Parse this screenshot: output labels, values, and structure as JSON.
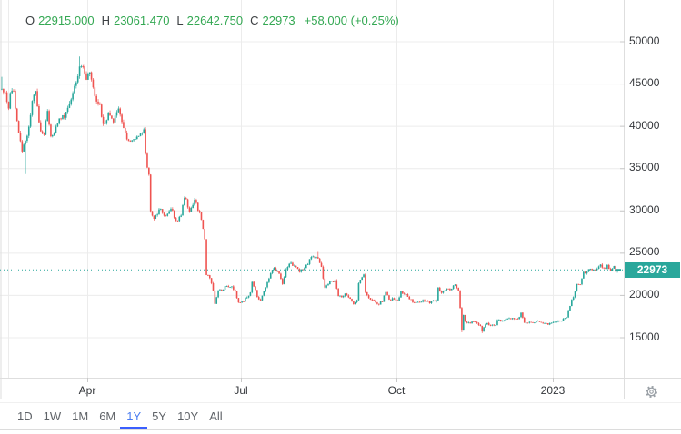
{
  "header": {
    "o_label": "O",
    "o_value": "22915.000",
    "h_label": "H",
    "h_value": "23061.470",
    "l_label": "L",
    "l_value": "22642.750",
    "c_label": "C",
    "c_value": "22973",
    "change": "+58.000 (+0.25%)"
  },
  "toolbar": {
    "ranges": [
      {
        "label": "1D",
        "active": false
      },
      {
        "label": "1W",
        "active": false
      },
      {
        "label": "1M",
        "active": false
      },
      {
        "label": "6M",
        "active": false
      },
      {
        "label": "1Y",
        "active": true
      },
      {
        "label": "5Y",
        "active": false
      },
      {
        "label": "10Y",
        "active": false
      },
      {
        "label": "All",
        "active": false
      }
    ]
  },
  "icons": {
    "settings": "gear"
  },
  "chart_data": {
    "type": "candlestick",
    "title": "1-year daily price chart, last close 22973",
    "legend_position": "top-left",
    "grid": true,
    "seed": 20,
    "candle_count": 365,
    "y_axis": {
      "ticks": [
        50000,
        45000,
        40000,
        35000,
        30000,
        25000,
        20000,
        15000
      ],
      "side": "right"
    },
    "x_axis": {
      "ticks": [
        {
          "label": "Apr",
          "day": 51
        },
        {
          "label": "Jul",
          "day": 142
        },
        {
          "label": "Oct",
          "day": 234
        },
        {
          "label": "2023",
          "day": 326
        }
      ]
    },
    "last_price_label": "22973",
    "forced_last": {
      "i": 364,
      "open": 22915,
      "high": 23061.47,
      "low": 22642.75,
      "close": 22973
    },
    "forced_wicks": [
      {
        "i": 0,
        "high": 45800
      },
      {
        "i": 14,
        "low": 34300
      },
      {
        "i": 46,
        "high": 48200
      },
      {
        "i": 126,
        "low": 17600
      },
      {
        "i": 187,
        "high": 25200
      },
      {
        "i": 272,
        "low": 15600
      },
      {
        "i": 284,
        "low": 15500
      }
    ],
    "anchors": [
      [
        0,
        44200
      ],
      [
        2,
        43900
      ],
      [
        4,
        42100
      ],
      [
        5,
        44100
      ],
      [
        7,
        43900
      ],
      [
        9,
        40300
      ],
      [
        11,
        38400
      ],
      [
        12,
        37100
      ],
      [
        14,
        38400
      ],
      [
        16,
        39600
      ],
      [
        18,
        43200
      ],
      [
        20,
        44400
      ],
      [
        22,
        40500
      ],
      [
        23,
        39100
      ],
      [
        25,
        38700
      ],
      [
        27,
        41900
      ],
      [
        29,
        38800
      ],
      [
        31,
        39300
      ],
      [
        34,
        41100
      ],
      [
        37,
        41000
      ],
      [
        40,
        42400
      ],
      [
        43,
        44500
      ],
      [
        46,
        47100
      ],
      [
        48,
        47000
      ],
      [
        50,
        45800
      ],
      [
        52,
        46400
      ],
      [
        55,
        43200
      ],
      [
        58,
        42300
      ],
      [
        60,
        40100
      ],
      [
        63,
        41400
      ],
      [
        66,
        40400
      ],
      [
        69,
        42000
      ],
      [
        72,
        39500
      ],
      [
        75,
        38200
      ],
      [
        78,
        38600
      ],
      [
        81,
        38500
      ],
      [
        84,
        39700
      ],
      [
        85,
        36500
      ],
      [
        87,
        34000
      ],
      [
        88,
        30100
      ],
      [
        90,
        29000
      ],
      [
        91,
        29300
      ],
      [
        94,
        30200
      ],
      [
        97,
        29200
      ],
      [
        100,
        30300
      ],
      [
        103,
        28700
      ],
      [
        106,
        29500
      ],
      [
        108,
        31700
      ],
      [
        111,
        29900
      ],
      [
        114,
        31350
      ],
      [
        116,
        30200
      ],
      [
        118,
        29100
      ],
      [
        120,
        26600
      ],
      [
        121,
        22500
      ],
      [
        123,
        22100
      ],
      [
        125,
        20400
      ],
      [
        126,
        19000
      ],
      [
        128,
        20600
      ],
      [
        131,
        20750
      ],
      [
        133,
        21100
      ],
      [
        136,
        21000
      ],
      [
        138,
        20300
      ],
      [
        140,
        19000
      ],
      [
        143,
        19300
      ],
      [
        147,
        20300
      ],
      [
        148,
        21600
      ],
      [
        151,
        19900
      ],
      [
        153,
        19300
      ],
      [
        155,
        20600
      ],
      [
        158,
        21800
      ],
      [
        159,
        22500
      ],
      [
        161,
        23200
      ],
      [
        164,
        22500
      ],
      [
        166,
        21300
      ],
      [
        168,
        22900
      ],
      [
        171,
        23800
      ],
      [
        173,
        23300
      ],
      [
        176,
        22900
      ],
      [
        179,
        23200
      ],
      [
        181,
        23800
      ],
      [
        183,
        24400
      ],
      [
        185,
        24450
      ],
      [
        187,
        24300
      ],
      [
        189,
        23200
      ],
      [
        191,
        20800
      ],
      [
        194,
        21500
      ],
      [
        197,
        21600
      ],
      [
        199,
        20000
      ],
      [
        201,
        19600
      ],
      [
        203,
        20300
      ],
      [
        205,
        19800
      ],
      [
        208,
        18800
      ],
      [
        210,
        19300
      ],
      [
        211,
        21350
      ],
      [
        214,
        22400
      ],
      [
        215,
        20200
      ],
      [
        217,
        19700
      ],
      [
        220,
        19400
      ],
      [
        223,
        18900
      ],
      [
        225,
        19300
      ],
      [
        227,
        20300
      ],
      [
        229,
        19400
      ],
      [
        232,
        19600
      ],
      [
        234,
        19300
      ],
      [
        236,
        20300
      ],
      [
        239,
        20050
      ],
      [
        242,
        19450
      ],
      [
        244,
        19050
      ],
      [
        246,
        19200
      ],
      [
        249,
        19300
      ],
      [
        252,
        19150
      ],
      [
        255,
        19200
      ],
      [
        257,
        19300
      ],
      [
        258,
        20750
      ],
      [
        260,
        20300
      ],
      [
        263,
        20800
      ],
      [
        265,
        20450
      ],
      [
        268,
        21300
      ],
      [
        270,
        20550
      ],
      [
        271,
        18500
      ],
      [
        272,
        15900
      ],
      [
        273,
        17550
      ],
      [
        274,
        16950
      ],
      [
        277,
        16650
      ],
      [
        280,
        16900
      ],
      [
        283,
        16250
      ],
      [
        284,
        15800
      ],
      [
        286,
        16600
      ],
      [
        289,
        16550
      ],
      [
        292,
        16450
      ],
      [
        293,
        17150
      ],
      [
        296,
        17000
      ],
      [
        299,
        17100
      ],
      [
        302,
        17200
      ],
      [
        305,
        17200
      ],
      [
        307,
        17800
      ],
      [
        309,
        16650
      ],
      [
        312,
        16750
      ],
      [
        315,
        16850
      ],
      [
        318,
        16850
      ],
      [
        321,
        16700
      ],
      [
        324,
        16550
      ],
      [
        326,
        16700
      ],
      [
        329,
        16950
      ],
      [
        332,
        17100
      ],
      [
        334,
        17450
      ],
      [
        336,
        18850
      ],
      [
        338,
        19900
      ],
      [
        340,
        21200
      ],
      [
        342,
        21150
      ],
      [
        344,
        22700
      ],
      [
        346,
        22700
      ],
      [
        348,
        23100
      ],
      [
        350,
        23000
      ],
      [
        352,
        23000
      ],
      [
        354,
        23750
      ],
      [
        356,
        23100
      ],
      [
        358,
        23450
      ],
      [
        360,
        22950
      ],
      [
        362,
        23250
      ],
      [
        363,
        22915
      ],
      [
        364,
        22973
      ]
    ],
    "colors": {
      "up": "#26a69a",
      "down": "#ef5350",
      "grid": "#ececec",
      "axis_line": "#dedede",
      "tick": "#c9c9c9",
      "dotted_line": "#26a69a",
      "badge_bg": "#2aa79b",
      "badge_text": "#ffffff",
      "header_value": "#34a853",
      "toolbar_active": "#4a7cf0",
      "toolbar_underline": "#3b5ffe"
    }
  }
}
